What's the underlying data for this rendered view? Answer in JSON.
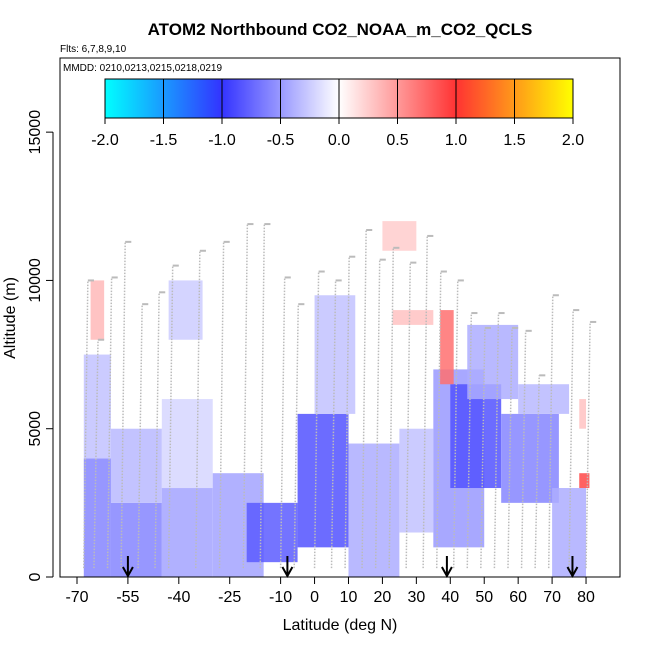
{
  "chart_data": {
    "type": "heatmap",
    "title": "ATOM2 Northbound CO2_NOAA_m_CO2_QCLS",
    "flights_label": "Flts: 6,7,8,9,10",
    "dates_label": "MMDD: 0210,0213,0215,0218,0219",
    "xlabel": "Latitude (deg N)",
    "ylabel": "Altitude (m)",
    "xlim": [
      -70,
      85
    ],
    "ylim": [
      0,
      17500
    ],
    "x_ticks": [
      -70,
      -55,
      -40,
      -25,
      -10,
      0,
      10,
      20,
      30,
      40,
      50,
      60,
      70,
      80
    ],
    "x_tick_labels": [
      "-70",
      "-55",
      "-40",
      "-25",
      "-10",
      "0",
      "10",
      "20",
      "30",
      "40",
      "50",
      "60",
      "70",
      "80"
    ],
    "y_ticks": [
      0,
      5000,
      10000,
      15000
    ],
    "y_tick_labels": [
      "0",
      "5000",
      "10000",
      "15000"
    ],
    "colorbar": {
      "range": [
        -2.0,
        2.0
      ],
      "ticks": [
        "-2.0",
        "-1.5",
        "-1.0",
        "-0.5",
        "0.0",
        "0.5",
        "1.0",
        "1.5",
        "2.0"
      ],
      "colors": {
        "min": "#00ffff",
        "low": "#3333ff",
        "mid": "#ffffff",
        "high": "#ff3333",
        "max": "#ffff00"
      }
    },
    "arrows_lat": [
      -55,
      -8,
      39,
      76
    ],
    "flight_track_color": "#bbbbbb",
    "profiles": [
      {
        "lat": -68,
        "top": 10000
      },
      {
        "lat": -65,
        "top": 8000
      },
      {
        "lat": -61,
        "top": 10100
      },
      {
        "lat": -57,
        "top": 11300
      },
      {
        "lat": -52,
        "top": 9200
      },
      {
        "lat": -47,
        "top": 9600
      },
      {
        "lat": -43,
        "top": 10500
      },
      {
        "lat": -35,
        "top": 11000
      },
      {
        "lat": -28,
        "top": 11300
      },
      {
        "lat": -21,
        "top": 11900
      },
      {
        "lat": -16,
        "top": 11900
      },
      {
        "lat": -10,
        "top": 10100
      },
      {
        "lat": -6,
        "top": 9200
      },
      {
        "lat": 0,
        "top": 10300
      },
      {
        "lat": 5,
        "top": 10000
      },
      {
        "lat": 9,
        "top": 10800
      },
      {
        "lat": 14,
        "top": 11700
      },
      {
        "lat": 18,
        "top": 10700
      },
      {
        "lat": 22,
        "top": 11100
      },
      {
        "lat": 27,
        "top": 10600
      },
      {
        "lat": 32,
        "top": 11500
      },
      {
        "lat": 36,
        "top": 10300
      },
      {
        "lat": 41,
        "top": 10000
      },
      {
        "lat": 45,
        "top": 8900
      },
      {
        "lat": 49,
        "top": 8400
      },
      {
        "lat": 53,
        "top": 8900
      },
      {
        "lat": 57,
        "top": 8400
      },
      {
        "lat": 61,
        "top": 8300
      },
      {
        "lat": 65,
        "top": 6800
      },
      {
        "lat": 69,
        "top": 9500
      },
      {
        "lat": 75,
        "top": 9000
      },
      {
        "lat": 80,
        "top": 8600
      }
    ],
    "anomalies": [
      {
        "lat": [
          -68,
          -60
        ],
        "alt": [
          0,
          4000
        ],
        "value": -0.6
      },
      {
        "lat": [
          -68,
          -60
        ],
        "alt": [
          4000,
          7500
        ],
        "value": -0.3
      },
      {
        "lat": [
          -60,
          -45
        ],
        "alt": [
          0,
          2500
        ],
        "value": -0.6
      },
      {
        "lat": [
          -60,
          -45
        ],
        "alt": [
          2500,
          5000
        ],
        "value": -0.35
      },
      {
        "lat": [
          -45,
          -30
        ],
        "alt": [
          0,
          3000
        ],
        "value": -0.45
      },
      {
        "lat": [
          -45,
          -30
        ],
        "alt": [
          3000,
          6000
        ],
        "value": -0.2
      },
      {
        "lat": [
          -30,
          -15
        ],
        "alt": [
          0,
          3500
        ],
        "value": -0.45
      },
      {
        "lat": [
          -20,
          -5
        ],
        "alt": [
          500,
          2500
        ],
        "value": -0.8
      },
      {
        "lat": [
          -5,
          10
        ],
        "alt": [
          1000,
          5500
        ],
        "value": -0.85
      },
      {
        "lat": [
          0,
          12
        ],
        "alt": [
          5500,
          9500
        ],
        "value": -0.3
      },
      {
        "lat": [
          10,
          25
        ],
        "alt": [
          0,
          4500
        ],
        "value": -0.4
      },
      {
        "lat": [
          25,
          35
        ],
        "alt": [
          1500,
          5000
        ],
        "value": -0.3
      },
      {
        "lat": [
          35,
          50
        ],
        "alt": [
          1000,
          7000
        ],
        "value": -0.5
      },
      {
        "lat": [
          40,
          55
        ],
        "alt": [
          3000,
          6500
        ],
        "value": -0.85
      },
      {
        "lat": [
          45,
          60
        ],
        "alt": [
          6000,
          8500
        ],
        "value": -0.4
      },
      {
        "lat": [
          55,
          72
        ],
        "alt": [
          2500,
          5500
        ],
        "value": -0.6
      },
      {
        "lat": [
          60,
          75
        ],
        "alt": [
          5500,
          6500
        ],
        "value": -0.35
      },
      {
        "lat": [
          70,
          80
        ],
        "alt": [
          0,
          3000
        ],
        "value": -0.4
      },
      {
        "lat": [
          -43,
          -33
        ],
        "alt": [
          8000,
          10000
        ],
        "value": -0.25
      },
      {
        "lat": [
          -66,
          -62
        ],
        "alt": [
          8000,
          10000
        ],
        "value": 0.35
      },
      {
        "lat": [
          23,
          35
        ],
        "alt": [
          8500,
          9000
        ],
        "value": 0.3
      },
      {
        "lat": [
          20,
          30
        ],
        "alt": [
          11000,
          12000
        ],
        "value": 0.25
      },
      {
        "lat": [
          37,
          41
        ],
        "alt": [
          6500,
          9000
        ],
        "value": 0.7
      },
      {
        "lat": [
          78,
          81
        ],
        "alt": [
          3000,
          3500
        ],
        "value": 0.9
      },
      {
        "lat": [
          78,
          80
        ],
        "alt": [
          5000,
          6000
        ],
        "value": 0.3
      }
    ]
  }
}
